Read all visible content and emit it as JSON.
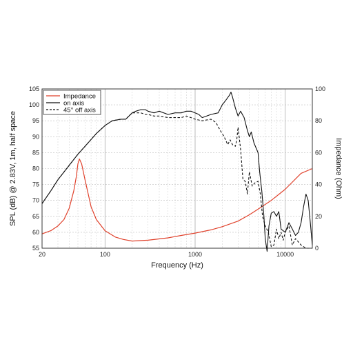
{
  "chart_data": {
    "type": "line",
    "xlabel": "Frequency (Hz)",
    "ylabel": "SPL (dB) @ 2.83V, 1m, half space",
    "y2label": "Impedance (Ohm)",
    "xscale": "log",
    "xlim": [
      20,
      20000
    ],
    "ylim": [
      55,
      105
    ],
    "y2lim": [
      0,
      100
    ],
    "xticks": [
      {
        "value": 20,
        "label": "20"
      },
      {
        "value": 100,
        "label": "100"
      },
      {
        "value": 1000,
        "label": "1000"
      },
      {
        "value": 10000,
        "label": "10000"
      }
    ],
    "yticks": [
      55,
      60,
      65,
      70,
      75,
      80,
      85,
      90,
      95,
      100,
      105
    ],
    "y2ticks": [
      0,
      20,
      40,
      60,
      80,
      100
    ],
    "grid": true,
    "legend_position": "top-left",
    "series": [
      {
        "name": "Impedance",
        "axis": "right",
        "color": "#e0412b",
        "style": "solid",
        "x": [
          20,
          25,
          30,
          35,
          40,
          45,
          48,
          50,
          52,
          55,
          60,
          70,
          80,
          100,
          130,
          160,
          200,
          300,
          500,
          700,
          1000,
          1500,
          2000,
          3000,
          4000,
          5000,
          7000,
          10000,
          15000,
          20000
        ],
        "y": [
          9,
          11,
          14,
          18,
          25,
          36,
          45,
          53,
          56,
          53,
          43,
          26,
          18,
          11,
          7,
          5.5,
          4.5,
          5,
          6.5,
          8,
          9.5,
          11.5,
          13.5,
          17,
          21,
          24.5,
          30,
          37,
          47,
          50
        ]
      },
      {
        "name": "on axis",
        "axis": "left",
        "color": "#111111",
        "style": "solid",
        "x": [
          20,
          25,
          30,
          40,
          50,
          60,
          80,
          100,
          120,
          150,
          170,
          200,
          220,
          250,
          280,
          300,
          350,
          400,
          500,
          600,
          700,
          800,
          900,
          1000,
          1100,
          1200,
          1500,
          1800,
          2000,
          2200,
          2400,
          2500,
          2600,
          2800,
          3000,
          3200,
          3500,
          3800,
          4000,
          4200,
          4500,
          5000,
          5200,
          5500,
          5800,
          6000,
          6300,
          6600,
          7000,
          7500,
          8000,
          8500,
          9000,
          10000,
          11000,
          12000,
          13000,
          14000,
          15000,
          16000,
          17000,
          18000,
          19000,
          20000
        ],
        "y": [
          69,
          73,
          76.5,
          81,
          84.5,
          87,
          91,
          93.5,
          95,
          95.5,
          95.5,
          97.5,
          98,
          98.5,
          98.5,
          98,
          97.5,
          98,
          97,
          97.5,
          97.5,
          98,
          98,
          97.5,
          97,
          96,
          97,
          97.5,
          100,
          101.5,
          103,
          104,
          102.5,
          99,
          96.5,
          98,
          96,
          92,
          90,
          91.5,
          88,
          85,
          79,
          73,
          65,
          58,
          54,
          62,
          66,
          66.5,
          65,
          66.5,
          61,
          60,
          63,
          61,
          59,
          60,
          63,
          68,
          72,
          70,
          63,
          56
        ]
      },
      {
        "name": "45° off axis",
        "axis": "left",
        "color": "#111111",
        "style": "dashed",
        "x": [
          20,
          25,
          30,
          40,
          50,
          60,
          80,
          100,
          120,
          150,
          170,
          200,
          220,
          250,
          280,
          300,
          350,
          400,
          500,
          600,
          700,
          800,
          900,
          1000,
          1200,
          1500,
          1700,
          1900,
          2100,
          2300,
          2450,
          2600,
          2800,
          2900,
          3000,
          3200,
          3400,
          3600,
          3800,
          4000,
          4300,
          4600,
          5000,
          5300,
          5600,
          6000,
          6500,
          7000,
          7500,
          8000,
          8500,
          9000,
          9500,
          10000,
          11000,
          12000,
          13000,
          15000,
          17000,
          20000
        ],
        "y": [
          69,
          73,
          76.5,
          81,
          84.5,
          87,
          91,
          93.5,
          95,
          95.5,
          95.5,
          97.5,
          97.5,
          97.5,
          97,
          97,
          96.5,
          96.5,
          96,
          96,
          96,
          96.5,
          96,
          95.5,
          95,
          95.5,
          94.5,
          92,
          90,
          87.5,
          89,
          87.5,
          87,
          89,
          93,
          86,
          76.5,
          76,
          72,
          79,
          74.5,
          75.5,
          76,
          72,
          65,
          62,
          60,
          55.5,
          56,
          61,
          58,
          60,
          57.5,
          60,
          62,
          56,
          58,
          56,
          55,
          55
        ]
      }
    ]
  }
}
